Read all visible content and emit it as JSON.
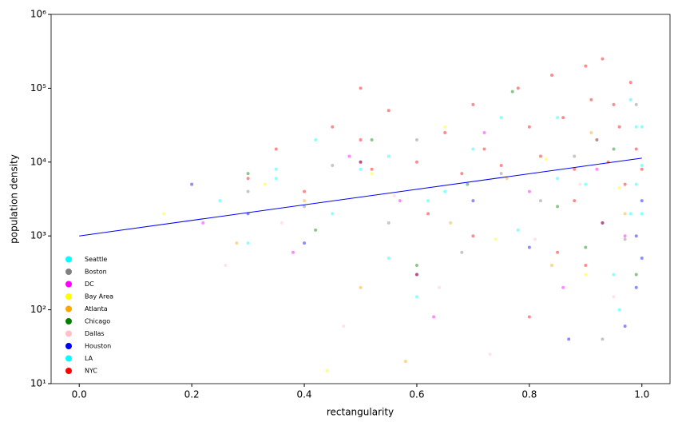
{
  "chart_data": {
    "type": "scatter",
    "xlabel": "rectangularity",
    "ylabel": "population density",
    "xlim": [
      -0.05,
      1.05
    ],
    "ylim": [
      10,
      1000000
    ],
    "log_y": true,
    "legend": "lower left",
    "xticks": [
      {
        "value": 0,
        "label": "0.0"
      },
      0.2,
      0.4,
      0.6,
      0.8,
      {
        "value": 1,
        "label": "1.0"
      }
    ],
    "yticks": [
      {
        "value": 10,
        "label": "10¹"
      },
      {
        "value": 100,
        "label": "10²"
      },
      {
        "value": 1000,
        "label": "10³"
      },
      {
        "value": 10000,
        "label": "10⁴"
      },
      {
        "value": 100000,
        "label": "10⁵"
      },
      {
        "value": 1000000,
        "label": "10⁶"
      }
    ],
    "series": [
      {
        "name": "Seattle",
        "color": "#00ffff",
        "x": [
          0.25,
          0.35,
          0.42,
          0.5,
          0.55,
          0.62,
          0.7,
          0.78,
          0.85,
          0.9,
          0.95,
          0.98,
          0.99,
          1.0,
          0.3,
          0.6
        ],
        "values": [
          3000,
          6000,
          20000,
          8000,
          500,
          3000,
          15000,
          1200,
          40000,
          5000,
          300,
          2000,
          30000,
          9000,
          800,
          150
        ]
      },
      {
        "name": "Boston",
        "color": "#808080",
        "x": [
          0.3,
          0.4,
          0.45,
          0.55,
          0.6,
          0.68,
          0.75,
          0.82,
          0.88,
          0.93,
          0.97,
          0.99
        ],
        "values": [
          4000,
          2500,
          9000,
          1500,
          20000,
          600,
          7000,
          3000,
          12000,
          40,
          900,
          60000
        ]
      },
      {
        "name": "DC",
        "color": "#ff00ff",
        "x": [
          0.22,
          0.38,
          0.48,
          0.57,
          0.63,
          0.72,
          0.8,
          0.86,
          0.92,
          0.97
        ],
        "values": [
          1500,
          600,
          12000,
          3000,
          80,
          25000,
          4000,
          200,
          8000,
          1000
        ]
      },
      {
        "name": "Bay Area",
        "color": "#ffff00",
        "x": [
          0.15,
          0.33,
          0.44,
          0.52,
          0.65,
          0.74,
          0.83,
          0.9,
          0.96
        ],
        "values": [
          2000,
          5000,
          15,
          7000,
          30000,
          900,
          11000,
          300,
          4500
        ]
      },
      {
        "name": "Atlanta",
        "color": "#ffa500",
        "x": [
          0.28,
          0.4,
          0.5,
          0.58,
          0.66,
          0.76,
          0.84,
          0.91,
          0.97
        ],
        "values": [
          800,
          3000,
          200,
          20,
          1500,
          6000,
          400,
          25000,
          2000
        ]
      },
      {
        "name": "Chicago",
        "color": "#008000",
        "x": [
          0.3,
          0.42,
          0.52,
          0.6,
          0.69,
          0.77,
          0.85,
          0.9,
          0.95,
          0.99
        ],
        "values": [
          7000,
          1200,
          20000,
          400,
          5000,
          90000,
          2500,
          700,
          15000,
          300
        ]
      },
      {
        "name": "Dallas",
        "color": "#ffc0cb",
        "x": [
          0.26,
          0.36,
          0.47,
          0.56,
          0.64,
          0.73,
          0.81,
          0.89,
          0.95
        ],
        "values": [
          400,
          1500,
          60,
          3500,
          200,
          25,
          900,
          5000,
          150
        ]
      },
      {
        "name": "Houston",
        "color": "#0000ff",
        "x": [
          0.2,
          0.3,
          0.4,
          0.5,
          0.6,
          0.7,
          0.8,
          0.87,
          0.93,
          0.97,
          0.99,
          1.0,
          1.0,
          0.99
        ],
        "values": [
          5000,
          2000,
          800,
          10000,
          300,
          3000,
          700,
          40,
          1500,
          60,
          1000,
          3000,
          500,
          200
        ]
      },
      {
        "name": "LA",
        "color": "#00ffff",
        "x": [
          0.35,
          0.45,
          0.55,
          0.65,
          0.75,
          0.85,
          0.92,
          0.96,
          0.98,
          0.99,
          1.0,
          1.0
        ],
        "values": [
          8000,
          2000,
          12000,
          4000,
          40000,
          6000,
          20000,
          100,
          70000,
          5000,
          30000,
          2000
        ]
      },
      {
        "name": "NYC",
        "color": "#ff0000",
        "x": [
          0.3,
          0.35,
          0.4,
          0.45,
          0.5,
          0.5,
          0.5,
          0.52,
          0.55,
          0.6,
          0.62,
          0.65,
          0.68,
          0.7,
          0.72,
          0.75,
          0.78,
          0.8,
          0.82,
          0.84,
          0.86,
          0.88,
          0.9,
          0.91,
          0.92,
          0.93,
          0.94,
          0.95,
          0.96,
          0.97,
          0.98,
          0.99,
          1.0,
          0.88,
          0.93,
          0.85,
          0.9,
          0.7,
          0.6,
          0.8
        ],
        "values": [
          6000,
          15000,
          4000,
          30000,
          100000,
          20000,
          10000,
          8000,
          50000,
          10000,
          2000,
          25000,
          7000,
          60000,
          15000,
          9000,
          100000,
          30000,
          12000,
          150000,
          40000,
          8000,
          200000,
          70000,
          20000,
          250000,
          10000,
          60000,
          30000,
          5000,
          120000,
          15000,
          8000,
          3000,
          1500,
          600,
          400,
          1000,
          300,
          80
        ]
      }
    ],
    "trend": {
      "color": "#0000ff",
      "x": [
        0,
        1
      ],
      "values": [
        1000,
        11300
      ]
    }
  }
}
